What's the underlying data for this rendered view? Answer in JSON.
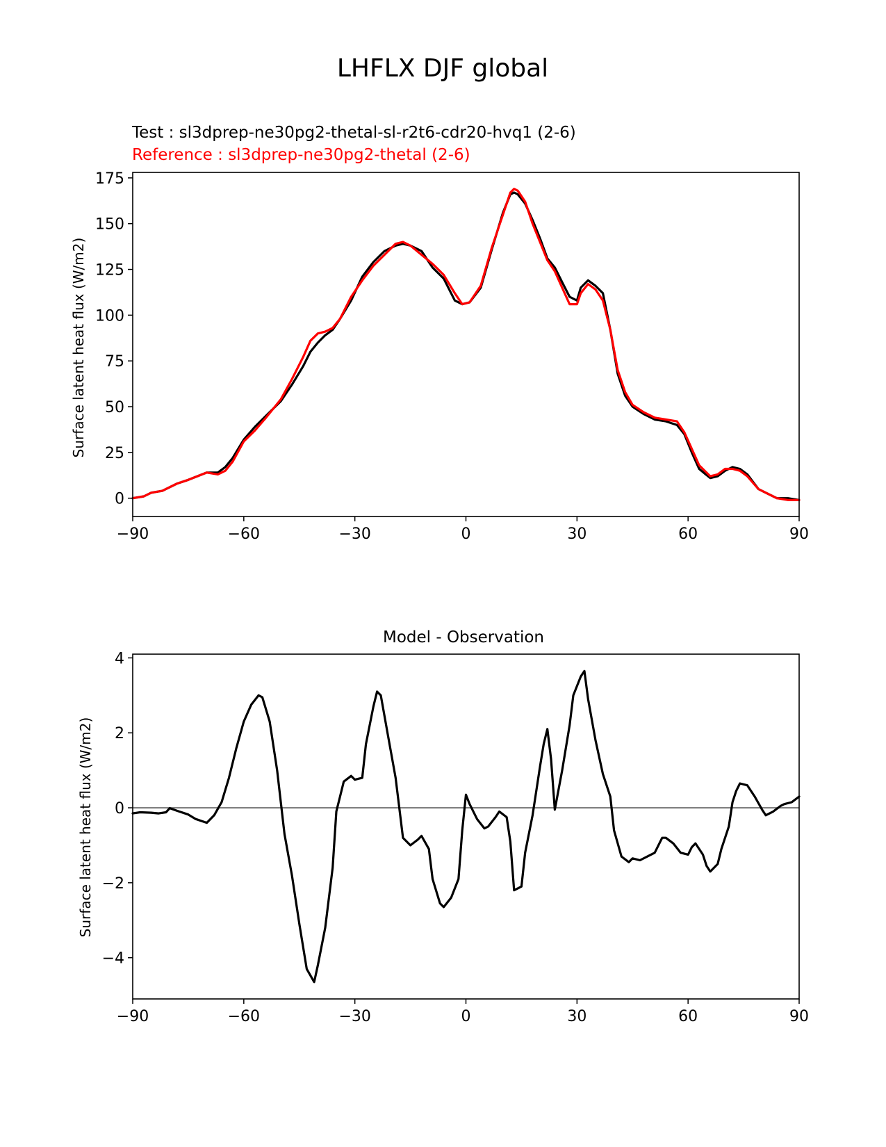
{
  "suptitle": "LHFLX DJF global",
  "colors": {
    "test": "#000000",
    "reference": "#ff0000",
    "zero_line": "#808080",
    "axes": "#000000"
  },
  "chart_data": [
    {
      "type": "line",
      "test_label": "Test : sl3dprep-ne30pg2-thetal-sl-r2t6-cdr20-hvq1 (2-6)",
      "reference_label": "Reference : sl3dprep-ne30pg2-thetal (2-6)",
      "xlabel": "",
      "ylabel": "Surface latent heat flux (W/m2)",
      "xlim": [
        -90,
        90
      ],
      "ylim": [
        -10,
        178
      ],
      "xticks": [
        -90,
        -60,
        -30,
        0,
        30,
        60,
        90
      ],
      "xtick_labels": [
        "−90",
        "−60",
        "−30",
        "0",
        "30",
        "60",
        "90"
      ],
      "yticks": [
        0,
        25,
        50,
        75,
        100,
        125,
        150,
        175
      ],
      "ytick_labels": [
        "0",
        "25",
        "50",
        "75",
        "100",
        "125",
        "150",
        "175"
      ],
      "x": [
        -90,
        -87,
        -85,
        -82,
        -78,
        -75,
        -70,
        -67,
        -65,
        -63,
        -60,
        -57,
        -54,
        -50,
        -47,
        -44,
        -42,
        -40,
        -38,
        -36,
        -34,
        -31,
        -28,
        -25,
        -22,
        -19,
        -17,
        -15,
        -12,
        -9,
        -6,
        -3,
        -1,
        1,
        4,
        7,
        10,
        12,
        13,
        14,
        16,
        18,
        20,
        22,
        24,
        26,
        28,
        30,
        31,
        33,
        35,
        37,
        39,
        41,
        43,
        45,
        48,
        51,
        54,
        57,
        59,
        61,
        63,
        66,
        68,
        70,
        72,
        74,
        76,
        79,
        81,
        84,
        87,
        90
      ],
      "series": [
        {
          "name": "Test",
          "color": "#000000",
          "values": [
            0,
            1,
            3,
            4,
            8,
            10,
            14,
            14,
            17,
            22,
            32,
            39,
            45,
            53,
            62,
            72,
            80,
            85,
            89,
            92,
            98,
            108,
            121,
            129,
            135,
            138,
            139,
            138,
            135,
            126,
            120,
            108,
            106,
            107,
            115,
            136,
            156,
            166,
            167,
            166,
            161,
            152,
            142,
            131,
            126,
            118,
            110,
            108,
            115,
            119,
            116,
            112,
            92,
            68,
            56,
            50,
            46,
            43,
            42,
            40,
            35,
            25,
            16,
            11,
            12,
            15,
            17,
            16,
            13,
            5,
            3,
            0,
            0,
            -1
          ]
        },
        {
          "name": "Reference",
          "color": "#ff0000",
          "values": [
            0,
            1,
            3,
            4,
            8,
            10,
            14,
            13,
            15,
            20,
            31,
            37,
            44,
            54,
            65,
            77,
            86,
            90,
            91,
            93,
            98,
            110,
            119,
            127,
            133,
            139,
            140,
            138,
            133,
            128,
            122,
            112,
            106,
            107,
            116,
            137,
            155,
            167,
            169,
            168,
            162,
            150,
            140,
            130,
            124,
            115,
            106,
            106,
            112,
            117,
            114,
            108,
            92,
            70,
            58,
            51,
            47,
            44,
            43,
            42,
            36,
            27,
            18,
            12,
            13,
            16,
            16,
            15,
            12,
            5,
            3,
            0,
            -1,
            -1
          ]
        }
      ]
    },
    {
      "type": "line",
      "title": "Model - Observation",
      "xlabel": "",
      "ylabel": "Surface latent heat flux (W/m2)",
      "xlim": [
        -90,
        90
      ],
      "ylim": [
        -5.1,
        4.1
      ],
      "xticks": [
        -90,
        -60,
        -30,
        0,
        30,
        60,
        90
      ],
      "xtick_labels": [
        "−90",
        "−60",
        "−30",
        "0",
        "30",
        "60",
        "90"
      ],
      "yticks": [
        -4,
        -2,
        0,
        2,
        4
      ],
      "ytick_labels": [
        "−4",
        "−2",
        "0",
        "2",
        "4"
      ],
      "zero_line": 0,
      "series": [
        {
          "name": "Model - Observation",
          "color": "#000000",
          "x": [
            -90,
            -88,
            -85,
            -83,
            -81,
            -80,
            -78,
            -75,
            -73,
            -70,
            -68,
            -66,
            -64,
            -62,
            -60,
            -58,
            -56,
            -55,
            -53,
            -51,
            -49,
            -47,
            -45,
            -43,
            -41,
            -40,
            -38,
            -36,
            -35,
            -33,
            -31,
            -30,
            -28,
            -27,
            -25,
            -24,
            -23,
            -21,
            -19,
            -17,
            -15,
            -13,
            -12,
            -10,
            -9,
            -7,
            -6,
            -4,
            -2,
            -1,
            0,
            1,
            3,
            5,
            6,
            8,
            9,
            11,
            12,
            13,
            15,
            16,
            18,
            20,
            21,
            22,
            23,
            24,
            26,
            28,
            29,
            31,
            32,
            33,
            35,
            37,
            39,
            40,
            42,
            44,
            45,
            47,
            49,
            51,
            53,
            54,
            56,
            58,
            60,
            61,
            62,
            64,
            65,
            66,
            68,
            69,
            71,
            72,
            73,
            74,
            76,
            78,
            80,
            81,
            83,
            85,
            86,
            88,
            90
          ],
          "values": [
            -0.15,
            -0.12,
            -0.13,
            -0.15,
            -0.12,
            -0.01,
            -0.08,
            -0.18,
            -0.3,
            -0.4,
            -0.2,
            0.15,
            0.8,
            1.6,
            2.3,
            2.75,
            3.0,
            2.95,
            2.3,
            1.0,
            -0.7,
            -1.8,
            -3.1,
            -4.3,
            -4.65,
            -4.2,
            -3.2,
            -1.6,
            -0.1,
            0.7,
            0.85,
            0.75,
            0.8,
            1.7,
            2.7,
            3.1,
            3.0,
            1.9,
            0.8,
            -0.8,
            -1.0,
            -0.85,
            -0.75,
            -1.1,
            -1.9,
            -2.55,
            -2.65,
            -2.4,
            -1.9,
            -0.6,
            0.35,
            0.1,
            -0.3,
            -0.55,
            -0.5,
            -0.25,
            -0.1,
            -0.25,
            -0.9,
            -2.2,
            -2.1,
            -1.2,
            -0.2,
            1.1,
            1.7,
            2.1,
            1.3,
            -0.05,
            1.0,
            2.2,
            3.0,
            3.5,
            3.65,
            2.9,
            1.8,
            0.9,
            0.3,
            -0.6,
            -1.3,
            -1.45,
            -1.35,
            -1.4,
            -1.3,
            -1.2,
            -0.8,
            -0.8,
            -0.95,
            -1.2,
            -1.25,
            -1.05,
            -0.95,
            -1.25,
            -1.55,
            -1.7,
            -1.5,
            -1.1,
            -0.5,
            0.15,
            0.45,
            0.65,
            0.6,
            0.3,
            -0.05,
            -0.2,
            -0.1,
            0.05,
            0.1,
            0.15,
            0.3
          ]
        }
      ]
    }
  ]
}
